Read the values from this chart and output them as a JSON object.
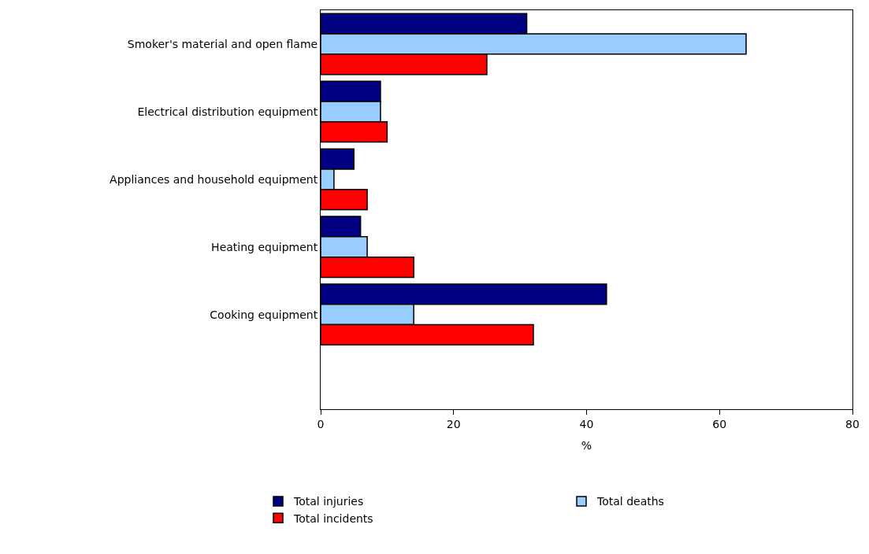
{
  "chart_data": {
    "type": "bar",
    "orientation": "horizontal",
    "xlabel": "%",
    "categories": [
      "Smoker's material and open flame",
      "Electrical distribution equipment",
      "Appliances and household equipment",
      "Heating equipment",
      "Cooking equipment"
    ],
    "series": [
      {
        "name": "Total injuries",
        "color": "#000080",
        "values": [
          31,
          9,
          5,
          6,
          43
        ]
      },
      {
        "name": "Total deaths",
        "color": "#99ccff",
        "values": [
          64,
          9,
          2,
          7,
          14
        ]
      },
      {
        "name": "Total incidents",
        "color": "#ff0000",
        "values": [
          25,
          10,
          7,
          14,
          32
        ]
      }
    ],
    "xlim": [
      0,
      80
    ],
    "xticks": [
      0,
      20,
      40,
      60,
      80
    ],
    "legend": "bottom"
  }
}
